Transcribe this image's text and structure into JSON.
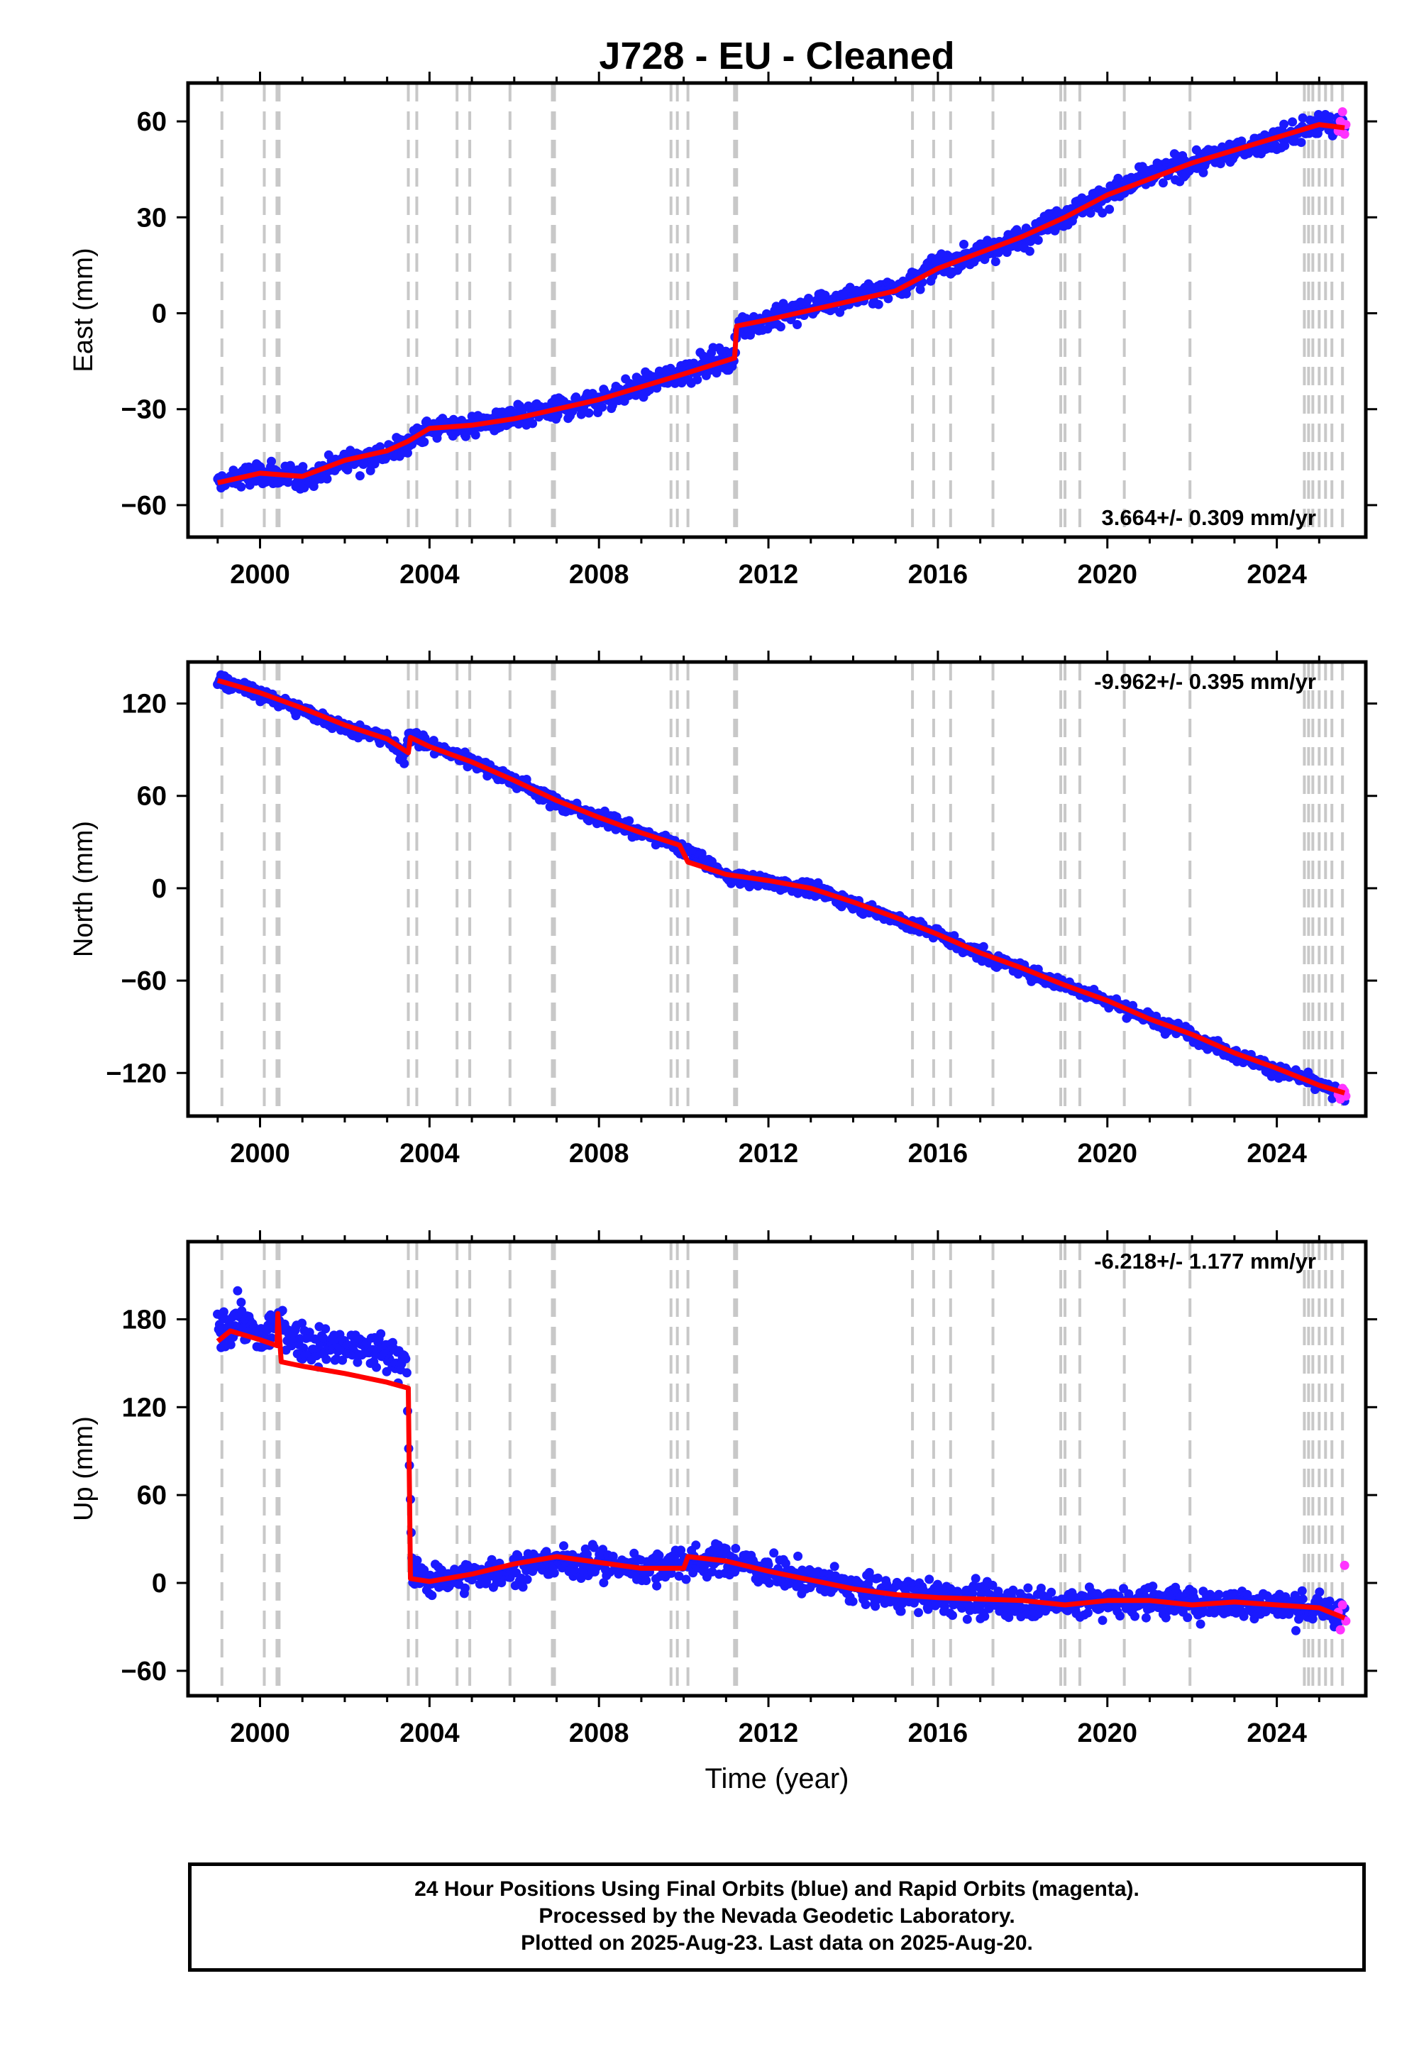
{
  "title": "J728  - EU - Cleaned",
  "footer": {
    "line1": "24 Hour Positions Using Final Orbits (blue) and Rapid Orbits (magenta).",
    "line2": "Processed by the Nevada Geodetic Laboratory.",
    "line3": "Plotted on 2025-Aug-23. Last data on 2025-Aug-20."
  },
  "chart_data": [
    {
      "type": "scatter",
      "ylabel": "East (mm)",
      "xlabel": "",
      "xlim": [
        1998.3,
        2026.1
      ],
      "ylim": [
        -70,
        72
      ],
      "xticks": [
        2000,
        2004,
        2008,
        2012,
        2016,
        2020,
        2024
      ],
      "yticks": [
        -60,
        -30,
        0,
        30,
        60
      ],
      "rate_label": "3.664+/- 0.309 mm/yr",
      "rate_position": "bottom-right",
      "series": [
        {
          "name": "Final Orbits (blue)",
          "color": "#1a1aff",
          "x": [
            1999.0,
            2000.0,
            2001.0,
            2002.0,
            2003.0,
            2004.0,
            2005.0,
            2006.0,
            2007.0,
            2008.0,
            2009.0,
            2010.0,
            2011.2,
            2011.3,
            2012.0,
            2013.0,
            2014.0,
            2015.0,
            2016.0,
            2017.0,
            2018.0,
            2019.0,
            2020.0,
            2021.0,
            2022.0,
            2023.0,
            2024.0,
            2025.0,
            2025.6
          ],
          "y": [
            -53,
            -50,
            -52,
            -46,
            -44,
            -36,
            -35,
            -33,
            -30,
            -27,
            -23,
            -18,
            -13,
            -4,
            -2,
            2,
            5,
            8,
            15,
            19,
            24,
            31,
            37,
            43,
            47,
            51,
            54,
            59,
            58
          ]
        },
        {
          "name": "Rapid Orbits (magenta)",
          "color": "#ff33ff",
          "x": [
            2025.45,
            2025.5,
            2025.55,
            2025.6,
            2025.63
          ],
          "y": [
            57,
            60,
            63,
            56,
            59
          ]
        },
        {
          "name": "model",
          "color": "#ff0000",
          "x": [
            1999.0,
            2000.0,
            2001.0,
            2002.0,
            2003.0,
            2003.5,
            2004.0,
            2005.0,
            2006.0,
            2007.0,
            2008.0,
            2009.0,
            2010.0,
            2011.2,
            2011.25,
            2012.0,
            2013.0,
            2014.0,
            2015.0,
            2016.0,
            2017.0,
            2018.0,
            2019.0,
            2020.0,
            2021.0,
            2022.0,
            2023.0,
            2024.0,
            2025.0,
            2025.6
          ],
          "y": [
            -53,
            -50,
            -51,
            -46,
            -43,
            -40,
            -36,
            -35,
            -33,
            -30,
            -27,
            -23,
            -19,
            -14,
            -4,
            -2,
            1,
            4,
            7,
            14,
            19,
            24,
            30,
            37,
            42,
            47,
            51,
            55,
            59,
            58
          ]
        }
      ],
      "steps_x": [
        1999.1,
        2000.1,
        2000.4,
        2000.45,
        2003.5,
        2003.7,
        2004.65,
        2004.95,
        2005.9,
        2006.9,
        2006.95,
        2009.7,
        2009.85,
        2010.1,
        2011.2,
        2011.25,
        2015.4,
        2015.9,
        2016.3,
        2017.3,
        2018.9,
        2019.0,
        2019.35,
        2020.4,
        2021.95,
        2024.65,
        2024.75,
        2024.85,
        2025.0,
        2025.15,
        2025.3,
        2025.55
      ]
    },
    {
      "type": "scatter",
      "ylabel": "North (mm)",
      "xlabel": "",
      "xlim": [
        1998.3,
        2026.1
      ],
      "ylim": [
        -148,
        147
      ],
      "xticks": [
        2000,
        2004,
        2008,
        2012,
        2016,
        2020,
        2024
      ],
      "yticks": [
        -120,
        -60,
        0,
        60,
        120
      ],
      "rate_label": "-9.962+/- 0.395 mm/yr",
      "rate_position": "top-right",
      "series": [
        {
          "name": "Final Orbits (blue)",
          "color": "#1a1aff",
          "x": [
            1999.0,
            2000.0,
            2001.0,
            2002.0,
            2003.0,
            2003.4,
            2003.5,
            2004.0,
            2005.0,
            2006.0,
            2007.0,
            2008.0,
            2009.0,
            2010.0,
            2011.0,
            2012.0,
            2013.0,
            2014.0,
            2015.0,
            2016.0,
            2017.0,
            2018.0,
            2019.0,
            2020.0,
            2021.0,
            2022.0,
            2023.0,
            2024.0,
            2025.0,
            2025.6
          ],
          "y": [
            136,
            126,
            116,
            105,
            97,
            85,
            100,
            93,
            83,
            70,
            56,
            46,
            36,
            26,
            8,
            4,
            0,
            -10,
            -20,
            -30,
            -43,
            -53,
            -63,
            -73,
            -85,
            -95,
            -108,
            -118,
            -128,
            -135
          ]
        },
        {
          "name": "Rapid Orbits (magenta)",
          "color": "#ff33ff",
          "x": [
            2025.45,
            2025.5,
            2025.55,
            2025.6,
            2025.63
          ],
          "y": [
            -134,
            -137,
            -130,
            -132,
            -135
          ]
        },
        {
          "name": "model",
          "color": "#ff0000",
          "x": [
            1999.0,
            2000.0,
            2001.0,
            2002.0,
            2003.0,
            2003.5,
            2003.55,
            2004.0,
            2005.0,
            2006.0,
            2007.0,
            2008.0,
            2009.0,
            2009.9,
            2010.1,
            2011.0,
            2012.0,
            2013.0,
            2014.0,
            2015.0,
            2016.0,
            2017.0,
            2018.0,
            2019.0,
            2020.0,
            2021.0,
            2022.0,
            2023.0,
            2024.0,
            2025.0,
            2025.6
          ],
          "y": [
            135,
            127,
            117,
            106,
            97,
            88,
            98,
            92,
            82,
            70,
            57,
            46,
            36,
            28,
            17,
            9,
            5,
            0,
            -9,
            -19,
            -30,
            -42,
            -52,
            -63,
            -73,
            -85,
            -95,
            -107,
            -117,
            -128,
            -133
          ]
        }
      ],
      "steps_x": [
        1999.1,
        2000.1,
        2000.4,
        2000.45,
        2003.5,
        2003.7,
        2004.65,
        2004.95,
        2005.9,
        2006.9,
        2006.95,
        2009.7,
        2009.85,
        2010.1,
        2011.2,
        2011.25,
        2015.4,
        2015.9,
        2016.3,
        2017.3,
        2018.9,
        2019.0,
        2019.35,
        2020.4,
        2021.95,
        2024.65,
        2024.75,
        2024.85,
        2025.0,
        2025.15,
        2025.3,
        2025.55
      ]
    },
    {
      "type": "scatter",
      "ylabel": "Up (mm)",
      "xlabel": "Time (year)",
      "xlim": [
        1998.3,
        2026.1
      ],
      "ylim": [
        -77,
        233
      ],
      "xticks": [
        2000,
        2004,
        2008,
        2012,
        2016,
        2020,
        2024
      ],
      "yticks": [
        -60,
        0,
        60,
        120,
        180
      ],
      "rate_label": "-6.218+/- 1.177 mm/yr",
      "rate_position": "top-right",
      "series": [
        {
          "name": "Final Orbits (blue)",
          "color": "#1a1aff",
          "x": [
            1999.0,
            1999.5,
            2000.0,
            2000.4,
            2001.0,
            2002.0,
            2003.0,
            2003.45,
            2003.6,
            2004.0,
            2005.0,
            2006.0,
            2007.0,
            2008.0,
            2009.0,
            2010.0,
            2011.0,
            2012.0,
            2013.0,
            2014.0,
            2015.0,
            2016.0,
            2017.0,
            2018.0,
            2019.0,
            2020.0,
            2021.0,
            2022.0,
            2023.0,
            2024.0,
            2025.0,
            2025.6
          ],
          "y": [
            172,
            180,
            166,
            178,
            164,
            160,
            158,
            150,
            4,
            2,
            5,
            10,
            15,
            13,
            10,
            14,
            16,
            8,
            3,
            -3,
            -8,
            -10,
            -12,
            -13,
            -14,
            -13,
            -12,
            -14,
            -14,
            -15,
            -18,
            -22
          ]
        },
        {
          "name": "Rapid Orbits (magenta)",
          "color": "#ff33ff",
          "x": [
            2025.45,
            2025.5,
            2025.55,
            2025.6,
            2025.63
          ],
          "y": [
            -20,
            -32,
            -15,
            12,
            -26
          ]
        },
        {
          "name": "model",
          "color": "#ff0000",
          "x": [
            1999.0,
            1999.3,
            2000.0,
            2000.4,
            2000.42,
            2000.5,
            2001.0,
            2002.0,
            2003.0,
            2003.5,
            2003.55,
            2004.0,
            2005.0,
            2006.0,
            2007.0,
            2008.0,
            2009.0,
            2010.0,
            2010.1,
            2011.0,
            2012.0,
            2013.0,
            2014.0,
            2015.0,
            2016.0,
            2017.0,
            2018.0,
            2019.0,
            2020.0,
            2021.0,
            2022.0,
            2023.0,
            2024.0,
            2025.0,
            2025.6
          ],
          "y": [
            165,
            172,
            166,
            162,
            184,
            151,
            148,
            143,
            137,
            133,
            3,
            1,
            6,
            13,
            18,
            14,
            10,
            10,
            18,
            15,
            8,
            2,
            -4,
            -8,
            -10,
            -11,
            -12,
            -15,
            -12,
            -12,
            -15,
            -13,
            -15,
            -17,
            -24
          ]
        }
      ],
      "steps_x": [
        1999.1,
        2000.1,
        2000.4,
        2000.45,
        2003.5,
        2003.7,
        2004.65,
        2004.95,
        2005.9,
        2006.9,
        2006.95,
        2009.7,
        2009.85,
        2010.1,
        2011.2,
        2011.25,
        2015.4,
        2015.9,
        2016.3,
        2017.3,
        2018.9,
        2019.0,
        2019.35,
        2020.4,
        2021.95,
        2024.65,
        2024.75,
        2024.85,
        2025.0,
        2025.15,
        2025.3,
        2025.55
      ]
    }
  ]
}
